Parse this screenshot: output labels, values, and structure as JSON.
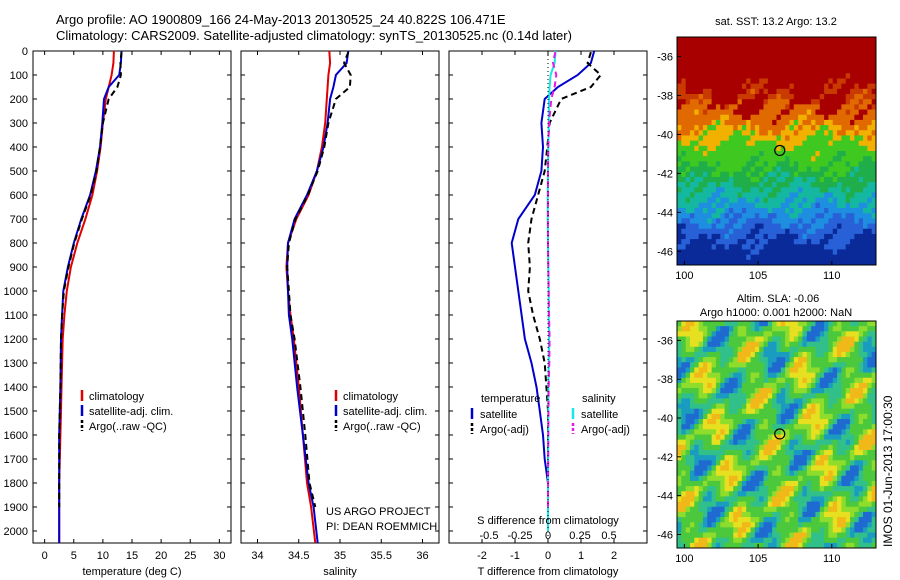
{
  "header": {
    "line1": "Argo profile: AO 1900809_166 24-May-2013 20130525_24 40.822S 106.471E",
    "line2": "Climatology: CARS2009. Satellite-adjusted climatology: synTS_20130525.nc (0.14d later)"
  },
  "colors": {
    "climatology": "#e00000",
    "satellite": "#0000cc",
    "argo": "#000000",
    "sal_satellite": "#19e6e6",
    "sal_argo": "#e619e6"
  },
  "depth_axis": {
    "ticks": [
      0,
      100,
      200,
      300,
      400,
      500,
      600,
      700,
      800,
      900,
      1000,
      1100,
      1200,
      1300,
      1400,
      1500,
      1600,
      1700,
      1800,
      1900,
      2000
    ],
    "ylim": [
      0,
      2050
    ]
  },
  "panel_temperature": {
    "xlabel": "temperature (deg C)",
    "xticks": [
      0,
      5,
      10,
      15,
      20,
      25,
      30
    ],
    "legend": [
      "climatology",
      "satellite-adj. clim.",
      "Argo(..raw -QC)"
    ]
  },
  "panel_salinity": {
    "xlabel": "salinity",
    "xticks": [
      "34",
      "34.5",
      "35",
      "35.5",
      "36"
    ],
    "legend": [
      "climatology",
      "satellite-adj. clim.",
      "Argo(..raw -QC)"
    ],
    "credit1": "US ARGO PROJECT",
    "credit2": "PI: DEAN ROEMMICH"
  },
  "panel_diff": {
    "top_axis_label": "S difference from climatology",
    "top_ticks": [
      "-0.5",
      "-0.25",
      "0",
      "0.25",
      "0.5"
    ],
    "xlabel": "T difference from climatology",
    "xticks": [
      "-2",
      "-1",
      "0",
      "1",
      "2"
    ],
    "legend_temp_title": "temperature",
    "legend_sal_title": "salinity",
    "legend_temp_items": [
      "satellite",
      "Argo(-adj)"
    ],
    "legend_sal_items": [
      "satellite",
      "Argo(-adj)"
    ]
  },
  "map_sst": {
    "title": "sat. SST: 13.2  Argo: 13.2",
    "yticks": [
      "-36",
      "-38",
      "-40",
      "-42",
      "-44",
      "-46"
    ],
    "xticks": [
      "100",
      "105",
      "110"
    ]
  },
  "map_sla": {
    "title1": "Altim. SLA: -0.06",
    "title2": "Argo h1000: 0.001 h2000: NaN",
    "yticks": [
      "-36",
      "-38",
      "-40",
      "-42",
      "-44",
      "-46"
    ],
    "xticks": [
      "100",
      "105",
      "110"
    ]
  },
  "side_label": "IMOS 01-Jun-2013 17:00:30",
  "chart_data": [
    {
      "type": "line",
      "title": "",
      "xlabel": "temperature (deg C)",
      "ylabel": "",
      "xlim": [
        -2,
        32
      ],
      "ylim": [
        2050,
        0
      ],
      "series": [
        {
          "name": "climatology",
          "x": [
            11.9,
            11.8,
            11.5,
            11.0,
            10.5,
            10.0,
            9.6,
            9.0,
            8.2,
            7.0,
            5.6,
            4.5,
            3.8,
            3.4,
            3.1,
            2.9,
            2.8,
            2.7,
            2.6,
            2.5,
            2.5,
            2.5
          ],
          "y": [
            0,
            50,
            100,
            150,
            200,
            300,
            400,
            500,
            600,
            700,
            800,
            900,
            1000,
            1100,
            1200,
            1400,
            1500,
            1600,
            1700,
            1800,
            1900,
            2050
          ]
        },
        {
          "name": "satellite-adj. clim.",
          "x": [
            13.2,
            13.1,
            12.8,
            11.0,
            10.2,
            9.9,
            9.5,
            8.8,
            7.8,
            6.3,
            5.0,
            4.0,
            3.2,
            3.0,
            2.8,
            2.7,
            2.6,
            2.5,
            2.5,
            2.5,
            2.5,
            2.5
          ],
          "y": [
            0,
            50,
            100,
            150,
            200,
            300,
            400,
            500,
            600,
            700,
            800,
            900,
            1000,
            1100,
            1200,
            1400,
            1500,
            1600,
            1700,
            1800,
            1900,
            2050
          ]
        },
        {
          "name": "Argo(..raw -QC)",
          "x": [
            13.2,
            13.0,
            13.1,
            12.5,
            11.0,
            10.0,
            9.5,
            8.9,
            7.9,
            6.4,
            5.1,
            4.1,
            3.3,
            3.0,
            2.8,
            2.7,
            2.6,
            2.5,
            2.5,
            2.5,
            2.5
          ],
          "y": [
            5,
            50,
            100,
            150,
            200,
            300,
            400,
            500,
            600,
            700,
            800,
            900,
            1000,
            1100,
            1200,
            1400,
            1500,
            1600,
            1700,
            1800,
            1900
          ]
        }
      ]
    },
    {
      "type": "line",
      "title": "",
      "xlabel": "salinity",
      "ylabel": "",
      "xlim": [
        33.8,
        36.2
      ],
      "ylim": [
        2050,
        0
      ],
      "series": [
        {
          "name": "climatology",
          "x": [
            34.87,
            34.88,
            34.86,
            34.85,
            34.84,
            34.82,
            34.78,
            34.72,
            34.62,
            34.47,
            34.37,
            34.35,
            34.37,
            34.4,
            34.44,
            34.5,
            34.55,
            34.6,
            34.65,
            34.7
          ],
          "y": [
            0,
            50,
            100,
            150,
            200,
            300,
            400,
            500,
            600,
            700,
            800,
            900,
            1000,
            1100,
            1200,
            1400,
            1600,
            1800,
            1900,
            2050
          ]
        },
        {
          "name": "satellite-adj. clim.",
          "x": [
            35.1,
            35.08,
            34.95,
            34.92,
            34.88,
            34.85,
            34.8,
            34.72,
            34.6,
            34.45,
            34.37,
            34.36,
            34.37,
            34.38,
            34.42,
            34.48,
            34.55,
            34.62,
            34.68,
            34.73
          ],
          "y": [
            0,
            50,
            100,
            150,
            200,
            300,
            400,
            500,
            600,
            700,
            800,
            900,
            1000,
            1100,
            1200,
            1400,
            1600,
            1800,
            1900,
            2050
          ]
        },
        {
          "name": "Argo(..raw -QC)",
          "x": [
            35.1,
            35.05,
            35.13,
            35.12,
            34.95,
            34.86,
            34.81,
            34.73,
            34.61,
            34.46,
            34.38,
            34.36,
            34.38,
            34.4,
            34.45,
            34.52,
            34.58,
            34.63,
            34.7
          ],
          "y": [
            5,
            50,
            100,
            150,
            200,
            300,
            400,
            500,
            600,
            700,
            800,
            900,
            1000,
            1100,
            1200,
            1400,
            1600,
            1800,
            1900
          ]
        }
      ]
    },
    {
      "type": "line",
      "title": "",
      "xlabel": "T difference from climatology",
      "ylabel": "",
      "xlim": [
        -3,
        3
      ],
      "ylim": [
        2050,
        0
      ],
      "series": [
        {
          "name": "temperature satellite",
          "x": [
            1.4,
            1.3,
            0.9,
            0.3,
            -0.1,
            -0.2,
            -0.15,
            -0.2,
            -0.4,
            -0.9,
            -1.1,
            -1.0,
            -0.9,
            -0.8,
            -0.7,
            -0.5,
            -0.35,
            -0.25,
            -0.15,
            -0.1,
            0,
            0
          ],
          "y": [
            0,
            50,
            100,
            150,
            200,
            300,
            400,
            500,
            600,
            700,
            800,
            900,
            1000,
            1100,
            1200,
            1300,
            1400,
            1500,
            1600,
            1700,
            1800,
            2000
          ]
        },
        {
          "name": "temperature Argo(-adj)",
          "x": [
            1.3,
            1.2,
            1.6,
            1.3,
            0.4,
            0.05,
            -0.02,
            -0.1,
            -0.3,
            -0.5,
            -0.6,
            -0.55,
            -0.6,
            -0.45,
            -0.25,
            -0.1,
            -0.05,
            0,
            0,
            0,
            0
          ],
          "y": [
            5,
            50,
            100,
            150,
            200,
            300,
            400,
            500,
            600,
            700,
            800,
            900,
            1000,
            1100,
            1200,
            1300,
            1400,
            1500,
            1600,
            1800,
            1950
          ]
        },
        {
          "name": "salinity satellite",
          "x": [
            0.23,
            0.2,
            0.08,
            0.05,
            0.03,
            0.02,
            0.01,
            0.0,
            -0.01,
            -0.01,
            0.0,
            0.01,
            0.02,
            0.02,
            0.03,
            0.02,
            0.01,
            0.01,
            0.0,
            0.0
          ],
          "y": [
            0,
            50,
            100,
            150,
            200,
            300,
            400,
            500,
            600,
            700,
            800,
            900,
            1000,
            1100,
            1200,
            1300,
            1400,
            1600,
            1800,
            2000
          ]
        },
        {
          "name": "salinity Argo(-adj)",
          "x": [
            0.22,
            0.15,
            0.25,
            0.2,
            0.1,
            0.03,
            0.01,
            0.0,
            0.0,
            0.0,
            0.0,
            0.01,
            0.02,
            0.03,
            0.05,
            0.04,
            0.02,
            0.01,
            0.0
          ],
          "y": [
            5,
            50,
            100,
            150,
            200,
            300,
            400,
            500,
            600,
            700,
            800,
            900,
            1000,
            1100,
            1200,
            1300,
            1400,
            1600,
            1900
          ]
        }
      ]
    },
    {
      "type": "heatmap",
      "title": "sat. SST: 13.2  Argo: 13.2",
      "xlim": [
        99.5,
        113
      ],
      "ylim": [
        -46.7,
        -35
      ],
      "argo_position": {
        "lon": 106.471,
        "lat": -40.822
      }
    },
    {
      "type": "heatmap",
      "title": "Altim. SLA: -0.06",
      "xlim": [
        99.5,
        113
      ],
      "ylim": [
        -46.7,
        -35
      ],
      "argo_position": {
        "lon": 106.471,
        "lat": -40.822
      }
    }
  ]
}
